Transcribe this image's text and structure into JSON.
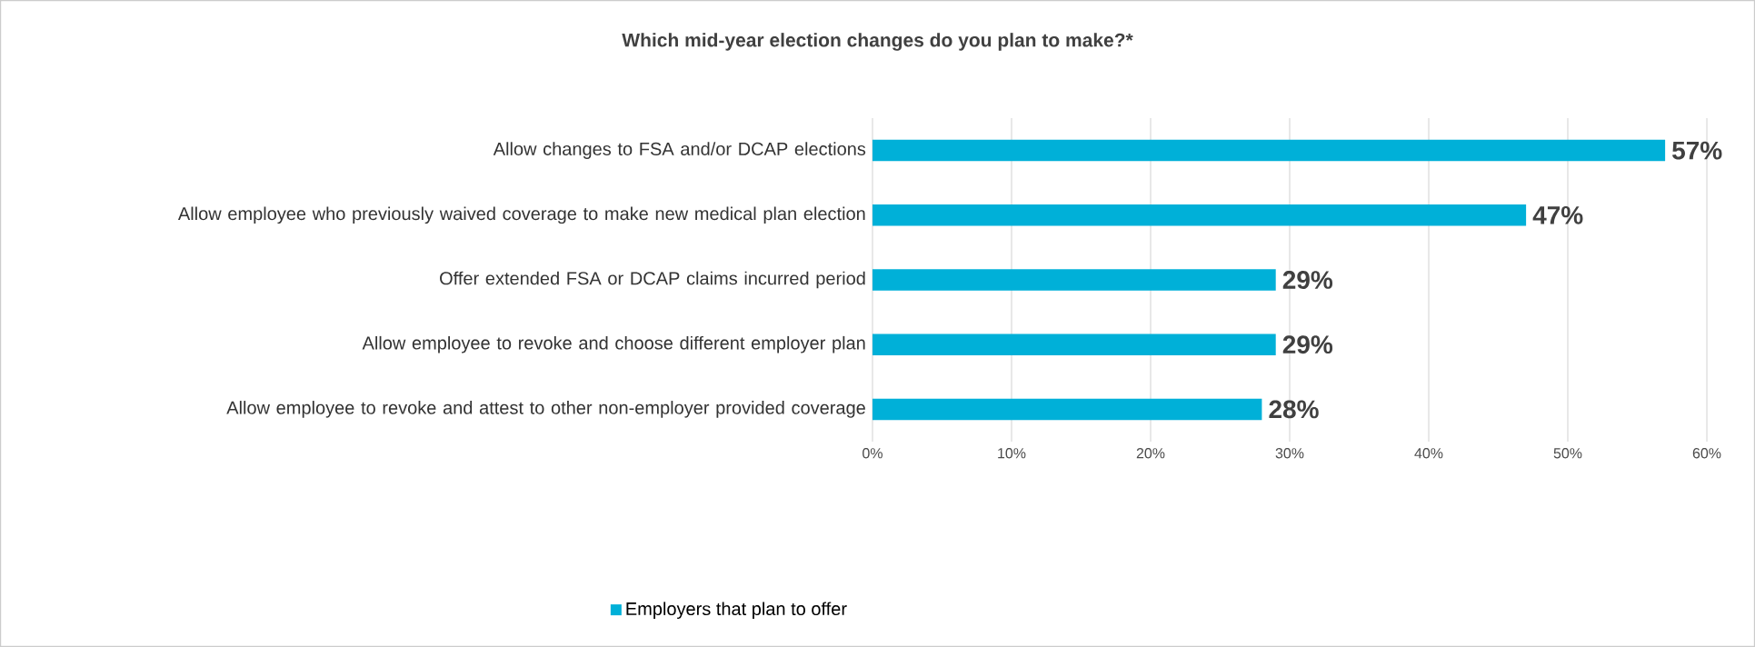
{
  "chart_data": {
    "type": "bar",
    "orientation": "horizontal",
    "title": "Which mid-year election changes do you plan to make?*",
    "categories": [
      "Allow changes to FSA and/or DCAP elections",
      "Allow employee who previously waived coverage to make new medical plan election",
      "Offer extended FSA or DCAP claims incurred period",
      "Allow employee to revoke and choose different employer plan",
      "Allow employee to revoke and attest to other non-employer provided coverage"
    ],
    "series": [
      {
        "name": "Employers that plan to offer",
        "color": "#00b0d8",
        "values": [
          57,
          47,
          29,
          29,
          28
        ]
      }
    ],
    "value_labels": [
      "57%",
      "47%",
      "29%",
      "29%",
      "28%"
    ],
    "xlim": [
      0,
      60
    ],
    "xticks": [
      {
        "value": 0,
        "label": "0%"
      },
      {
        "value": 10,
        "label": "10%"
      },
      {
        "value": 20,
        "label": "20%"
      },
      {
        "value": 30,
        "label": "30%"
      },
      {
        "value": 40,
        "label": "40%"
      },
      {
        "value": 50,
        "label": "50%"
      },
      {
        "value": 60,
        "label": "60%"
      }
    ],
    "grid": "x",
    "legend": "bottom"
  }
}
